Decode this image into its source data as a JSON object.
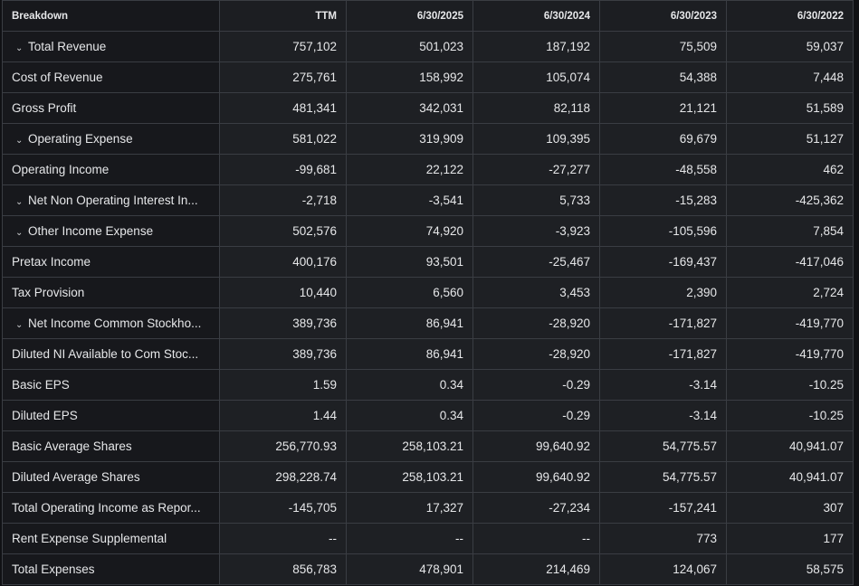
{
  "headers": [
    "Breakdown",
    "TTM",
    "6/30/2025",
    "6/30/2024",
    "6/30/2023",
    "6/30/2022"
  ],
  "rows": [
    {
      "label": "Total Revenue",
      "expandable": true,
      "values": [
        "757,102",
        "501,023",
        "187,192",
        "75,509",
        "59,037"
      ]
    },
    {
      "label": "Cost of Revenue",
      "expandable": false,
      "values": [
        "275,761",
        "158,992",
        "105,074",
        "54,388",
        "7,448"
      ]
    },
    {
      "label": "Gross Profit",
      "expandable": false,
      "values": [
        "481,341",
        "342,031",
        "82,118",
        "21,121",
        "51,589"
      ]
    },
    {
      "label": "Operating Expense",
      "expandable": true,
      "values": [
        "581,022",
        "319,909",
        "109,395",
        "69,679",
        "51,127"
      ]
    },
    {
      "label": "Operating Income",
      "expandable": false,
      "values": [
        "-99,681",
        "22,122",
        "-27,277",
        "-48,558",
        "462"
      ]
    },
    {
      "label": "Net Non Operating Interest In...",
      "expandable": true,
      "values": [
        "-2,718",
        "-3,541",
        "5,733",
        "-15,283",
        "-425,362"
      ]
    },
    {
      "label": "Other Income Expense",
      "expandable": true,
      "values": [
        "502,576",
        "74,920",
        "-3,923",
        "-105,596",
        "7,854"
      ]
    },
    {
      "label": "Pretax Income",
      "expandable": false,
      "values": [
        "400,176",
        "93,501",
        "-25,467",
        "-169,437",
        "-417,046"
      ]
    },
    {
      "label": "Tax Provision",
      "expandable": false,
      "values": [
        "10,440",
        "6,560",
        "3,453",
        "2,390",
        "2,724"
      ]
    },
    {
      "label": "Net Income Common Stockho...",
      "expandable": true,
      "values": [
        "389,736",
        "86,941",
        "-28,920",
        "-171,827",
        "-419,770"
      ]
    },
    {
      "label": "Diluted NI Available to Com Stoc...",
      "expandable": false,
      "values": [
        "389,736",
        "86,941",
        "-28,920",
        "-171,827",
        "-419,770"
      ]
    },
    {
      "label": "Basic EPS",
      "expandable": false,
      "values": [
        "1.59",
        "0.34",
        "-0.29",
        "-3.14",
        "-10.25"
      ]
    },
    {
      "label": "Diluted EPS",
      "expandable": false,
      "values": [
        "1.44",
        "0.34",
        "-0.29",
        "-3.14",
        "-10.25"
      ]
    },
    {
      "label": "Basic Average Shares",
      "expandable": false,
      "values": [
        "256,770.93",
        "258,103.21",
        "99,640.92",
        "54,775.57",
        "40,941.07"
      ]
    },
    {
      "label": "Diluted Average Shares",
      "expandable": false,
      "values": [
        "298,228.74",
        "258,103.21",
        "99,640.92",
        "54,775.57",
        "40,941.07"
      ]
    },
    {
      "label": "Total Operating Income as Repor...",
      "expandable": false,
      "values": [
        "-145,705",
        "17,327",
        "-27,234",
        "-157,241",
        "307"
      ]
    },
    {
      "label": "Rent Expense Supplemental",
      "expandable": false,
      "values": [
        "--",
        "--",
        "--",
        "773",
        "177"
      ]
    },
    {
      "label": "Total Expenses",
      "expandable": false,
      "values": [
        "856,783",
        "478,901",
        "214,469",
        "124,067",
        "58,575"
      ]
    }
  ]
}
